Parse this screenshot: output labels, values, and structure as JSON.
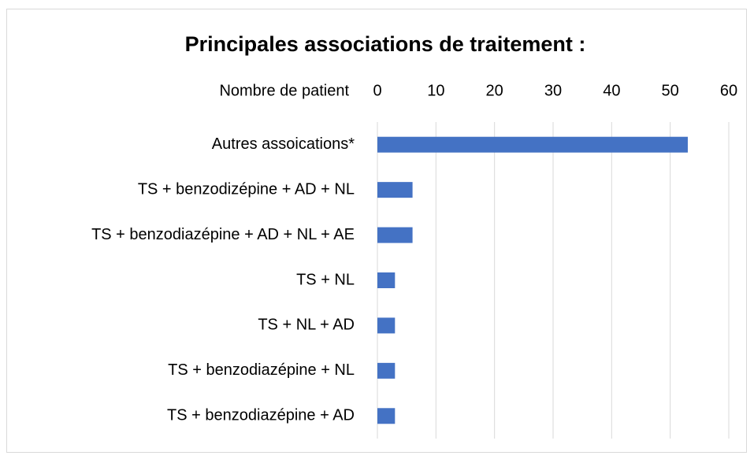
{
  "chart_data": {
    "type": "bar",
    "orientation": "horizontal",
    "title": "Principales associations de traitement :",
    "x_label": "Nombre de patient",
    "categories": [
      "Autres assoications*",
      "TS + benzodizépine + AD + NL",
      "TS + benzodiazépine + AD + NL + AE",
      "TS + NL",
      "TS + NL + AD",
      "TS + benzodiazépine + NL",
      "TS + benzodiazépine + AD"
    ],
    "values": [
      53,
      6,
      6,
      3,
      3,
      3,
      3
    ],
    "color": "#4472c4",
    "xlim": [
      0,
      60
    ],
    "xticks": [
      0,
      10,
      20,
      30,
      40,
      50,
      60
    ],
    "grid": true
  }
}
